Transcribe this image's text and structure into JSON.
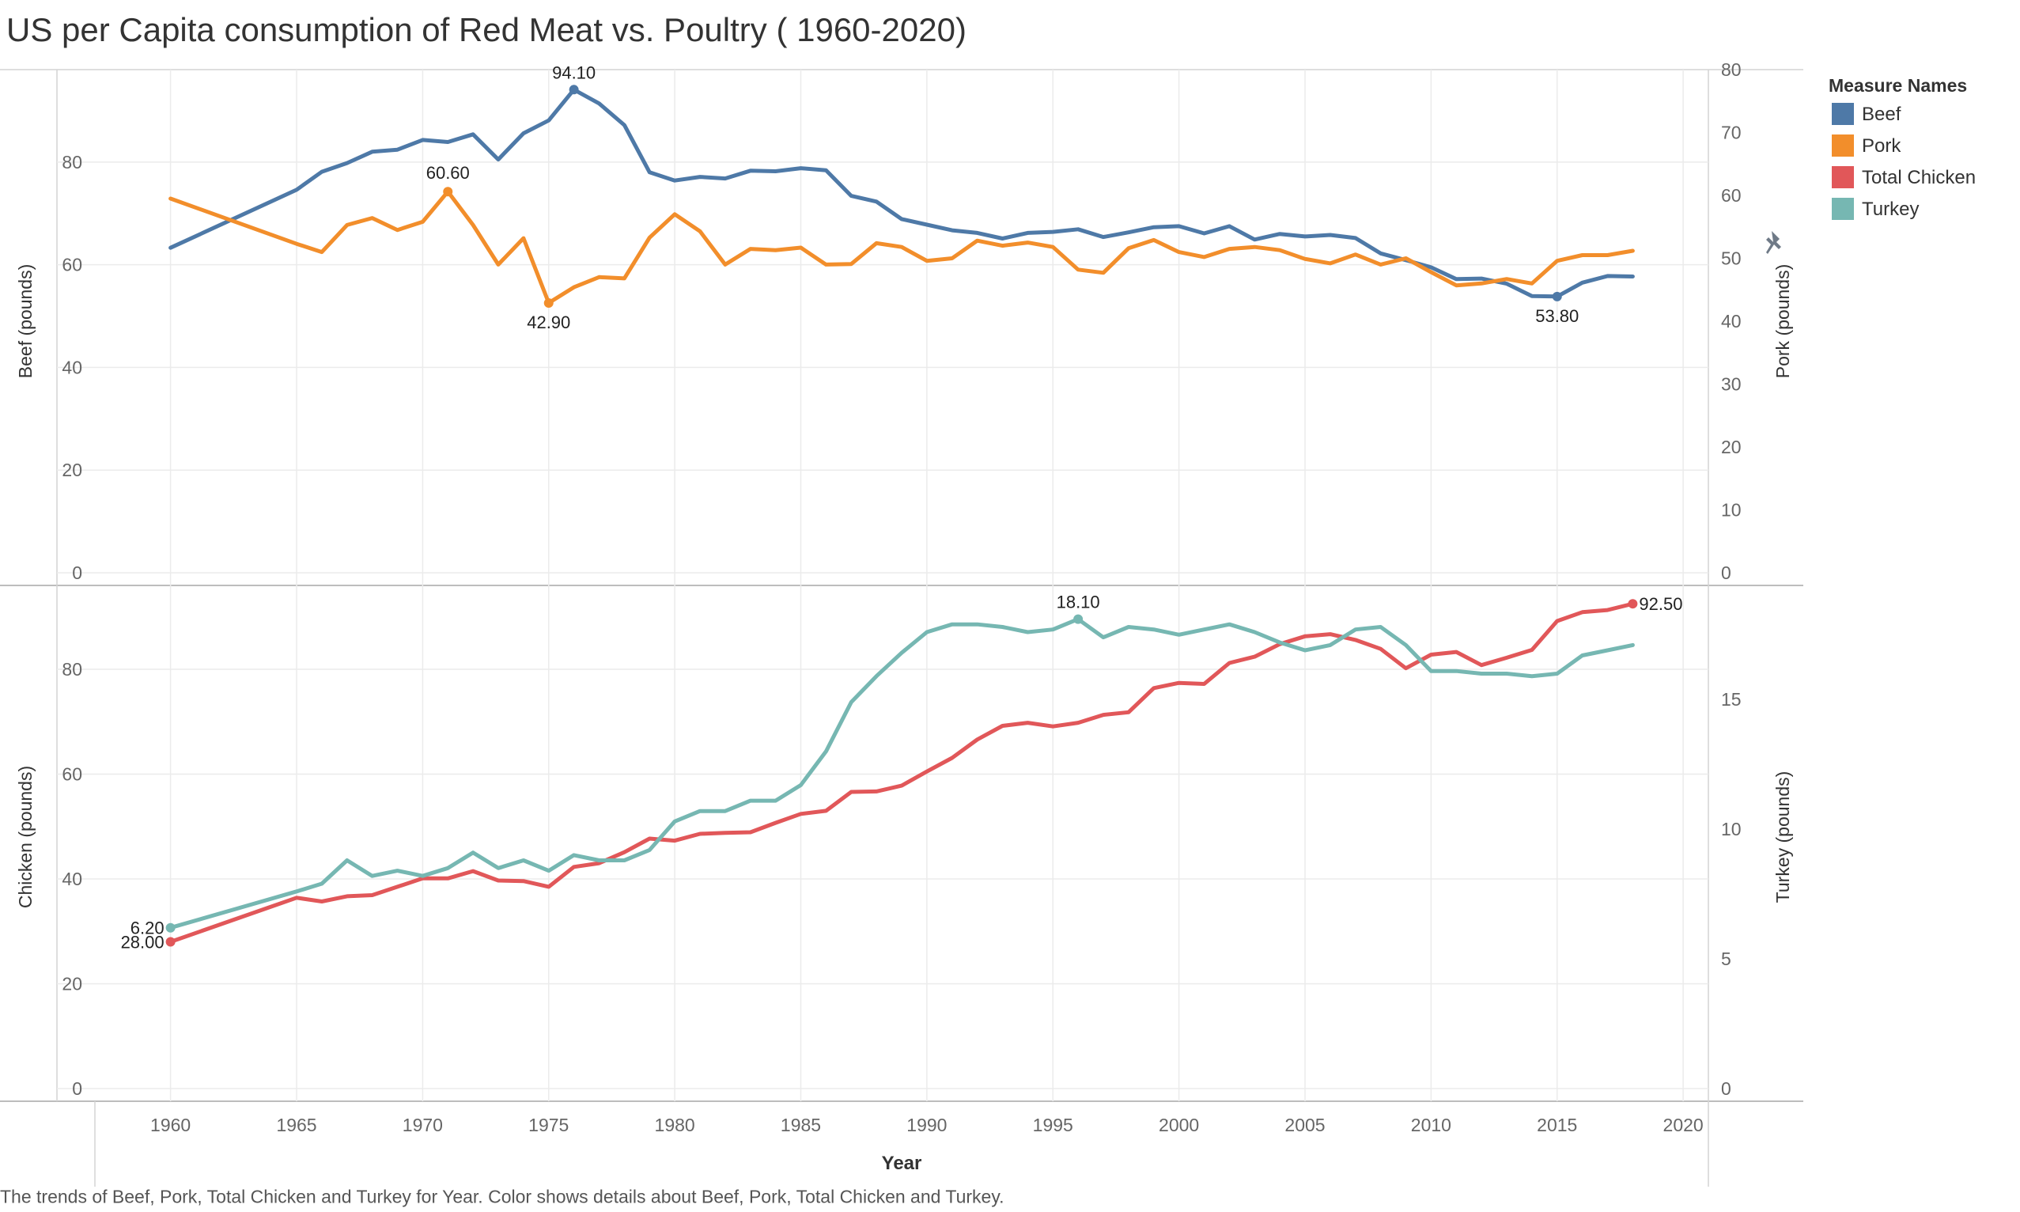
{
  "title": "US per Capita consumption of Red Meat vs. Poultry ( 1960-2020)",
  "caption": "The trends of Beef, Pork, Total Chicken and Turkey for Year.  Color shows details about Beef, Pork, Total Chicken and Turkey.",
  "legend": {
    "title": "Measure Names",
    "items": [
      {
        "label": "Beef",
        "color": "#4e79a7"
      },
      {
        "label": "Pork",
        "color": "#f28e2b"
      },
      {
        "label": "Total Chicken",
        "color": "#e15759"
      },
      {
        "label": "Turkey",
        "color": "#76b7b2"
      }
    ]
  },
  "chart_data": {
    "type": "line",
    "x": [
      1960,
      1965,
      1966,
      1967,
      1968,
      1969,
      1970,
      1971,
      1972,
      1973,
      1974,
      1975,
      1976,
      1977,
      1978,
      1979,
      1980,
      1981,
      1982,
      1983,
      1984,
      1985,
      1986,
      1987,
      1988,
      1989,
      1990,
      1991,
      1992,
      1993,
      1994,
      1995,
      1996,
      1997,
      1998,
      1999,
      2000,
      2001,
      2002,
      2003,
      2004,
      2005,
      2006,
      2007,
      2008,
      2009,
      2010,
      2011,
      2012,
      2013,
      2014,
      2015,
      2016,
      2017,
      2018
    ],
    "xlabel": "Year",
    "xticks": [
      1960,
      1965,
      1970,
      1975,
      1980,
      1985,
      1990,
      1995,
      2000,
      2005,
      2010,
      2015,
      2020
    ],
    "xlim": [
      1957,
      2021
    ],
    "panes": [
      {
        "left_axis": {
          "label": "Beef (pounds)",
          "ylim": [
            0,
            98
          ],
          "ticks": [
            0,
            20,
            40,
            60,
            80
          ]
        },
        "right_axis": {
          "label": "Pork (pounds)",
          "ylim": [
            0,
            80
          ],
          "ticks": [
            0,
            10,
            20,
            30,
            40,
            50,
            60,
            70,
            80
          ]
        },
        "series": [
          {
            "name": "Beef",
            "axis": "left",
            "color": "#4e79a7",
            "values": [
              63.3,
              74.6,
              78.1,
              79.8,
              82.0,
              82.4,
              84.3,
              83.9,
              85.4,
              80.5,
              85.6,
              88.1,
              94.1,
              91.4,
              87.2,
              78.0,
              76.4,
              77.1,
              76.8,
              78.3,
              78.2,
              78.8,
              78.4,
              73.4,
              72.3,
              68.9,
              67.8,
              66.7,
              66.2,
              65.1,
              66.2,
              66.4,
              66.9,
              65.4,
              66.3,
              67.3,
              67.5,
              66.1,
              67.5,
              64.9,
              66.0,
              65.5,
              65.8,
              65.2,
              62.2,
              60.9,
              59.5,
              57.2,
              57.3,
              56.3,
              53.9,
              53.8,
              56.5,
              57.8,
              57.7
            ],
            "labels": [
              {
                "x": 1976,
                "text": "94.10"
              },
              {
                "x": 2015,
                "text": "53.80"
              }
            ]
          },
          {
            "name": "Pork",
            "axis": "right",
            "color": "#f28e2b",
            "values": [
              59.5,
              52.3,
              51.0,
              55.3,
              56.4,
              54.5,
              55.8,
              60.6,
              55.3,
              49.0,
              53.2,
              42.9,
              45.4,
              47.0,
              46.8,
              53.3,
              57.0,
              54.3,
              49.0,
              51.5,
              51.3,
              51.7,
              49.0,
              49.1,
              52.4,
              51.8,
              49.6,
              50.0,
              52.8,
              52.0,
              52.5,
              51.8,
              48.2,
              47.7,
              51.6,
              52.9,
              51.0,
              50.2,
              51.5,
              51.8,
              51.3,
              49.9,
              49.2,
              50.6,
              49.0,
              50.0,
              47.8,
              45.7,
              46.0,
              46.7,
              46.0,
              49.6,
              50.5,
              50.5,
              51.2
            ],
            "labels": [
              {
                "x": 1971,
                "text": "60.60"
              },
              {
                "x": 1975,
                "text": "42.90"
              }
            ]
          }
        ]
      },
      {
        "left_axis": {
          "label": "Chicken (pounds)",
          "ylim": [
            0,
            96
          ],
          "ticks": [
            0,
            20,
            40,
            60,
            80
          ]
        },
        "right_axis": {
          "label": "Turkey (pounds)",
          "ylim": [
            0,
            19.4
          ],
          "ticks": [
            0,
            5,
            10,
            15
          ]
        },
        "series": [
          {
            "name": "Total Chicken",
            "axis": "left",
            "color": "#e15759",
            "values": [
              28.0,
              36.4,
              35.7,
              36.7,
              36.9,
              38.5,
              40.1,
              40.1,
              41.5,
              39.7,
              39.6,
              38.5,
              42.3,
              43.0,
              45.1,
              47.7,
              47.3,
              48.6,
              48.8,
              48.9,
              50.7,
              52.4,
              53.0,
              56.6,
              56.7,
              57.8,
              60.5,
              63.1,
              66.6,
              69.2,
              69.8,
              69.1,
              69.8,
              71.3,
              71.8,
              76.4,
              77.4,
              77.2,
              81.2,
              82.4,
              84.8,
              86.3,
              86.7,
              85.6,
              83.9,
              80.2,
              82.8,
              83.3,
              80.8,
              82.2,
              83.7,
              89.2,
              90.9,
              91.3,
              92.5
            ],
            "labels": [
              {
                "x": 1960,
                "text": "28.00"
              },
              {
                "x": 2018,
                "text": "92.50"
              }
            ]
          },
          {
            "name": "Turkey",
            "axis": "right",
            "color": "#76b7b2",
            "values": [
              6.2,
              7.6,
              7.9,
              8.8,
              8.2,
              8.4,
              8.2,
              8.5,
              9.1,
              8.5,
              8.8,
              8.4,
              9.0,
              8.8,
              8.8,
              9.2,
              10.3,
              10.7,
              10.7,
              11.1,
              11.1,
              11.7,
              13.0,
              14.9,
              15.9,
              16.8,
              17.6,
              17.9,
              17.9,
              17.8,
              17.6,
              17.7,
              18.1,
              17.4,
              17.8,
              17.7,
              17.5,
              17.7,
              17.9,
              17.6,
              17.2,
              16.9,
              17.1,
              17.7,
              17.8,
              17.1,
              16.1,
              16.1,
              16.0,
              16.0,
              15.9,
              16.0,
              16.7,
              16.9,
              17.1
            ],
            "labels": [
              {
                "x": 1996,
                "text": "18.10"
              },
              {
                "x": 1960,
                "text": "6.20"
              }
            ]
          }
        ]
      }
    ]
  }
}
